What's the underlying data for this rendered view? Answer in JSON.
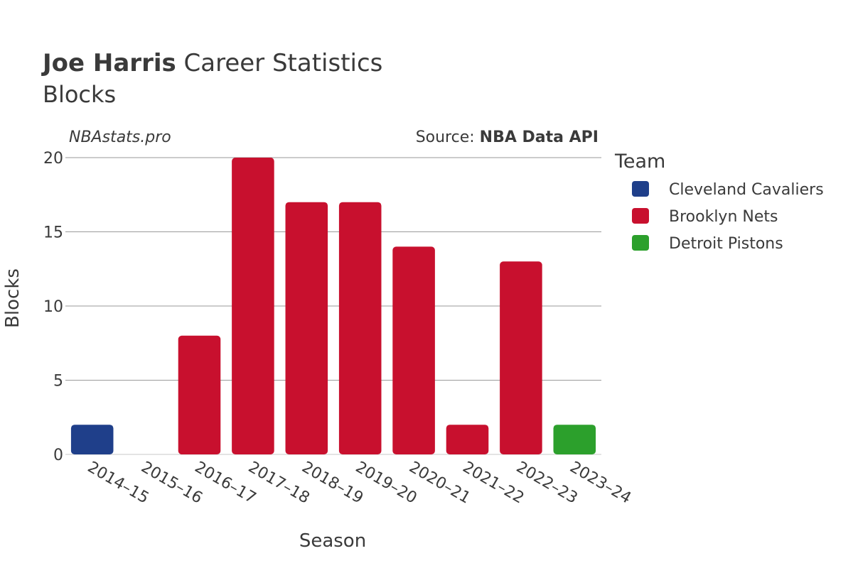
{
  "header": {
    "player_name": "Joe Harris",
    "title_rest": " Career Statistics",
    "subtitle": "Blocks",
    "brand": "NBAstats.pro",
    "source_prefix": "Source: ",
    "source_name": "NBA Data API"
  },
  "legend": {
    "title": "Team",
    "items": [
      {
        "name": "Cleveland Cavaliers",
        "color": "#1f3f8a"
      },
      {
        "name": "Brooklyn Nets",
        "color": "#c8102e"
      },
      {
        "name": "Detroit Pistons",
        "color": "#2ca02c"
      }
    ]
  },
  "chart_data": {
    "type": "bar",
    "xlabel": "Season",
    "ylabel": "Blocks",
    "ylim": [
      0,
      20
    ],
    "yticks": [
      0,
      5,
      10,
      15,
      20
    ],
    "grid": true,
    "legend_position": "right",
    "categories": [
      "2014–15",
      "2015–16",
      "2016–17",
      "2017–18",
      "2018–19",
      "2019–20",
      "2020–21",
      "2021–22",
      "2022–23",
      "2023–24"
    ],
    "values": [
      2,
      0,
      8,
      20,
      17,
      17,
      14,
      2,
      13,
      2
    ],
    "teams": [
      "Cleveland Cavaliers",
      "Cleveland Cavaliers",
      "Brooklyn Nets",
      "Brooklyn Nets",
      "Brooklyn Nets",
      "Brooklyn Nets",
      "Brooklyn Nets",
      "Brooklyn Nets",
      "Brooklyn Nets",
      "Detroit Pistons"
    ]
  }
}
